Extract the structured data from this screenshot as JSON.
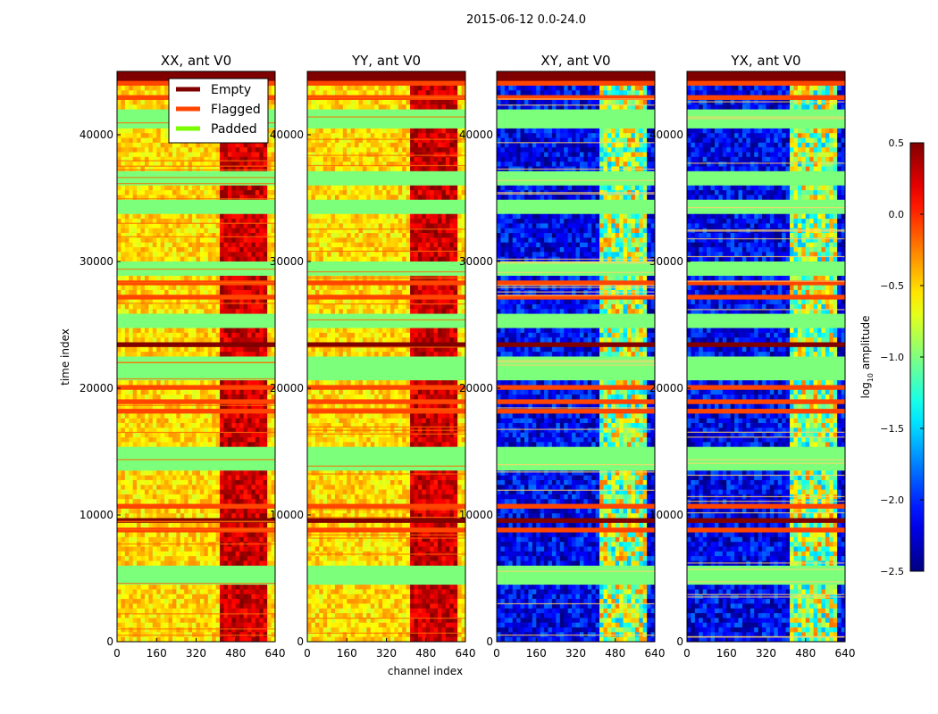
{
  "figure": {
    "suptitle": "2015-06-12 0.0-24.0",
    "colormap": "jet",
    "colorbar": {
      "label_main": "log",
      "label_sub": "10",
      "label_rest": " amplitude",
      "range": [
        -2.5,
        0.5
      ],
      "ticks": [
        "0.5",
        "0.0",
        "−0.5",
        "−1.0",
        "−1.5",
        "−2.0",
        "−2.5"
      ],
      "tick_values": [
        0.5,
        0.0,
        -0.5,
        -1.0,
        -1.5,
        -2.0,
        -2.5
      ]
    },
    "legend": [
      {
        "label": "Empty",
        "color": "#800000"
      },
      {
        "label": "Flagged",
        "color": "#ff4500"
      },
      {
        "label": "Padded",
        "color": "#7cfc00"
      }
    ]
  },
  "chart_data": [
    {
      "type": "heatmap",
      "title": "XX, ant V0",
      "xlabel": "",
      "ylabel": "time index",
      "xlim": [
        0,
        640
      ],
      "ylim": [
        0,
        45000
      ],
      "xticks": [
        "0",
        "160",
        "320",
        "480",
        "640"
      ],
      "xtick_values": [
        0,
        160,
        320,
        480,
        640
      ],
      "yticks": [
        "0",
        "10000",
        "20000",
        "30000",
        "40000"
      ],
      "ytick_values": [
        0,
        10000,
        20000,
        30000,
        40000
      ]
    },
    {
      "type": "heatmap",
      "title": "YY, ant V0",
      "xlabel": "channel index",
      "ylabel": "",
      "xlim": [
        0,
        640
      ],
      "ylim": [
        0,
        45000
      ],
      "xticks": [
        "0",
        "160",
        "320",
        "480",
        "640"
      ],
      "xtick_values": [
        0,
        160,
        320,
        480,
        640
      ],
      "yticks": [
        "0",
        "10000",
        "20000",
        "30000",
        "40000"
      ],
      "ytick_values": [
        0,
        10000,
        20000,
        30000,
        40000
      ]
    },
    {
      "type": "heatmap",
      "title": "XY, ant V0",
      "xlabel": "",
      "ylabel": "",
      "xlim": [
        0,
        640
      ],
      "ylim": [
        0,
        45000
      ],
      "xticks": [
        "0",
        "160",
        "320",
        "480",
        "640"
      ],
      "xtick_values": [
        0,
        160,
        320,
        480,
        640
      ],
      "yticks": [
        "0",
        "10000",
        "20000",
        "30000",
        "40000"
      ],
      "ytick_values": [
        0,
        10000,
        20000,
        30000,
        40000
      ]
    },
    {
      "type": "heatmap",
      "title": "YX, ant V0",
      "xlabel": "",
      "ylabel": "",
      "xlim": [
        0,
        640
      ],
      "ylim": [
        0,
        45000
      ],
      "xticks": [
        "0",
        "160",
        "320",
        "480",
        "640"
      ],
      "xtick_values": [
        0,
        160,
        320,
        480,
        640
      ],
      "yticks": [
        "0",
        "10000",
        "20000",
        "30000",
        "40000"
      ],
      "ytick_values": [
        0,
        10000,
        20000,
        30000,
        40000
      ]
    }
  ]
}
